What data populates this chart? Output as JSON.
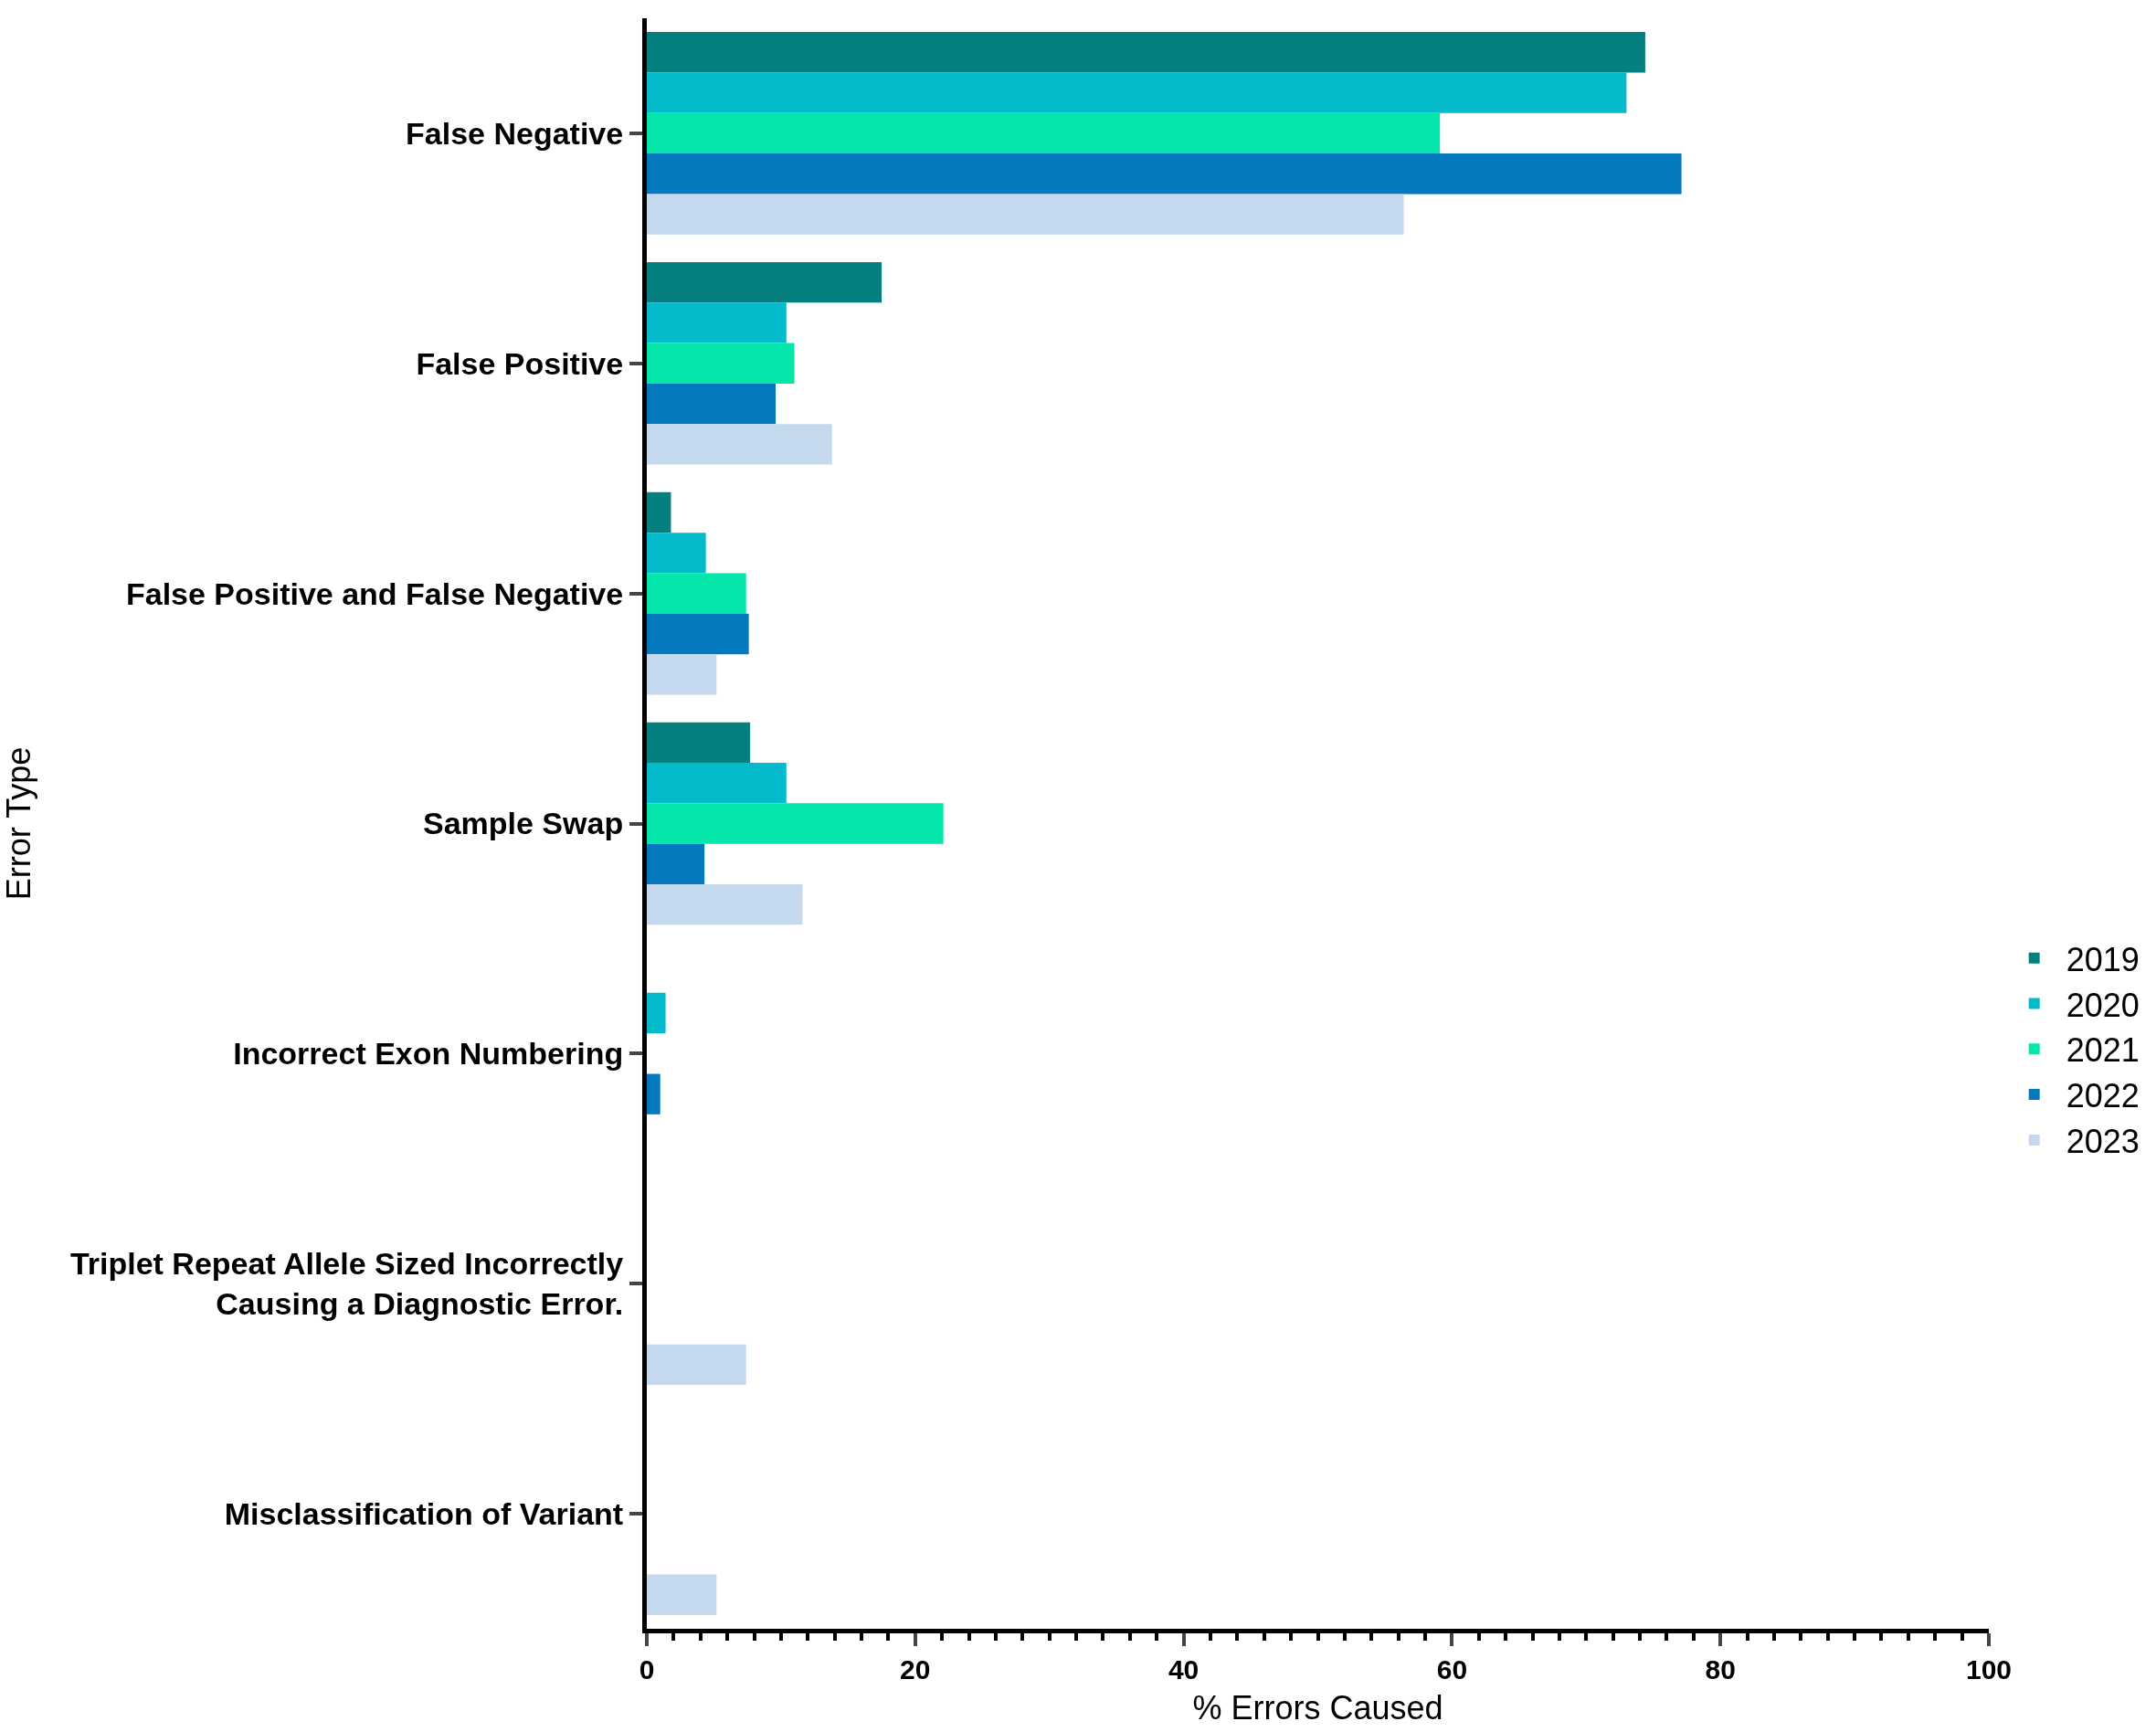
{
  "chart_data": {
    "type": "bar",
    "orientation": "horizontal",
    "xlabel": "% Errors Caused",
    "ylabel": "Error Type",
    "categories": [
      "False Negative",
      "False Positive",
      "False Positive and False Negative",
      "Sample Swap",
      "Incorrect Exon Numbering",
      "Triplet Repeat Allele Sized Incorrectly Causing a Diagnostic Error.",
      "Misclassification of Variant"
    ],
    "series": [
      {
        "name": "2019",
        "color": "#057f80",
        "values": [
          74.4,
          17.5,
          1.8,
          7.7,
          0,
          0,
          0
        ]
      },
      {
        "name": "2020",
        "color": "#03bbca",
        "values": [
          73.0,
          10.4,
          4.4,
          10.4,
          1.4,
          0,
          0
        ]
      },
      {
        "name": "2021",
        "color": "#05e6ab",
        "values": [
          59.1,
          11.0,
          7.4,
          22.1,
          0,
          0,
          0
        ]
      },
      {
        "name": "2022",
        "color": "#0479bd",
        "values": [
          77.1,
          9.6,
          7.6,
          4.3,
          1.0,
          0,
          0
        ]
      },
      {
        "name": "2023",
        "color": "#c4d8ee",
        "values": [
          56.4,
          13.8,
          5.2,
          11.6,
          0,
          7.4,
          5.2
        ]
      }
    ],
    "xlim": [
      0,
      100
    ],
    "xticks": [
      0,
      20,
      40,
      60,
      80,
      100,
      {
        "value": 2,
        "label": null
      },
      {
        "value": 4,
        "label": null
      },
      {
        "value": 6,
        "label": null
      },
      {
        "value": 8,
        "label": null
      },
      {
        "value": 10,
        "label": null
      },
      {
        "value": 12,
        "label": null
      },
      {
        "value": 14,
        "label": null
      },
      {
        "value": 16,
        "label": null
      },
      {
        "value": 18,
        "label": null
      },
      {
        "value": 22,
        "label": null
      },
      {
        "value": 24,
        "label": null
      },
      {
        "value": 26,
        "label": null
      },
      {
        "value": 28,
        "label": null
      },
      {
        "value": 30,
        "label": null
      },
      {
        "value": 32,
        "label": null
      },
      {
        "value": 34,
        "label": null
      },
      {
        "value": 36,
        "label": null
      },
      {
        "value": 38,
        "label": null
      },
      {
        "value": 42,
        "label": null
      },
      {
        "value": 44,
        "label": null
      },
      {
        "value": 46,
        "label": null
      },
      {
        "value": 48,
        "label": null
      },
      {
        "value": 50,
        "label": null
      },
      {
        "value": 52,
        "label": null
      },
      {
        "value": 54,
        "label": null
      },
      {
        "value": 56,
        "label": null
      },
      {
        "value": 58,
        "label": null
      },
      {
        "value": 62,
        "label": null
      },
      {
        "value": 64,
        "label": null
      },
      {
        "value": 66,
        "label": null
      },
      {
        "value": 68,
        "label": null
      },
      {
        "value": 70,
        "label": null
      },
      {
        "value": 72,
        "label": null
      },
      {
        "value": 74,
        "label": null
      },
      {
        "value": 76,
        "label": null
      },
      {
        "value": 78,
        "label": null
      },
      {
        "value": 82,
        "label": null
      },
      {
        "value": 84,
        "label": null
      },
      {
        "value": 86,
        "label": null
      },
      {
        "value": 88,
        "label": null
      },
      {
        "value": 90,
        "label": null
      },
      {
        "value": 92,
        "label": null
      },
      {
        "value": 94,
        "label": null
      },
      {
        "value": 96,
        "label": null
      },
      {
        "value": 98,
        "label": null
      }
    ],
    "legend": "right"
  }
}
